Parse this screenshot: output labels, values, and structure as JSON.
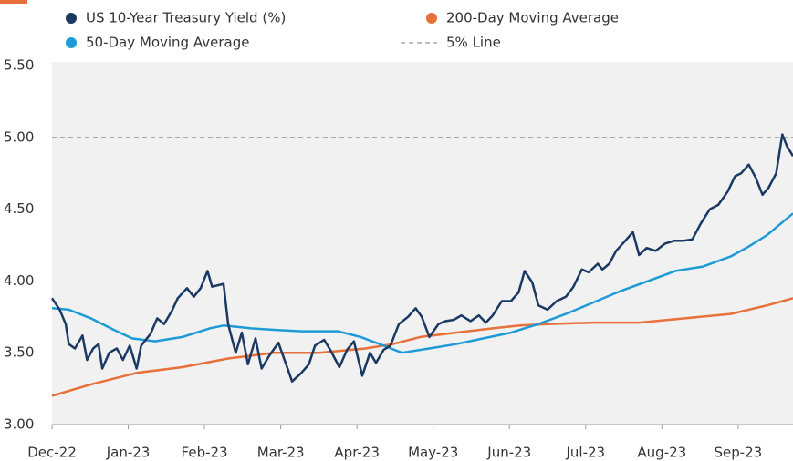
{
  "chart_data": {
    "type": "line",
    "xlim": [
      0,
      9.72
    ],
    "xticks": [
      {
        "value": 0,
        "label": "Dec-22"
      },
      {
        "value": 1,
        "label": "Jan-23"
      },
      {
        "value": 2,
        "label": "Feb-23"
      },
      {
        "value": 3,
        "label": "Mar-23"
      },
      {
        "value": 4,
        "label": "Apr-23"
      },
      {
        "value": 5,
        "label": "May-23"
      },
      {
        "value": 6,
        "label": "Jun-23"
      },
      {
        "value": 7,
        "label": "Jul-23"
      },
      {
        "value": 8,
        "label": "Aug-23"
      },
      {
        "value": 9,
        "label": "Sep-23"
      }
    ],
    "ylim": [
      3,
      5.5
    ],
    "yticks": [
      {
        "value": 3,
        "label": "3.00"
      },
      {
        "value": 3.5,
        "label": "3.50"
      },
      {
        "value": 4,
        "label": "4.00"
      },
      {
        "value": 4.5,
        "label": "4.50"
      },
      {
        "value": 5,
        "label": "5.00"
      },
      {
        "value": 5.5,
        "label": "5.50"
      }
    ],
    "grid": false,
    "reference_lines": [
      {
        "name": "5% Line",
        "value": 5,
        "color": "#aaaaaa"
      }
    ],
    "series": [
      {
        "name": "US 10-Year Treasury Yield (%)",
        "color": "#1b3a63",
        "x": [
          0,
          0.1,
          0.18,
          0.22,
          0.3,
          0.4,
          0.46,
          0.54,
          0.61,
          0.66,
          0.75,
          0.85,
          0.93,
          1.02,
          1.11,
          1.17,
          1.29,
          1.38,
          1.47,
          1.57,
          1.65,
          1.77,
          1.86,
          1.95,
          2.04,
          2.1,
          2.25,
          2.31,
          2.41,
          2.49,
          2.57,
          2.67,
          2.75,
          2.85,
          2.97,
          3.07,
          3.15,
          3.27,
          3.37,
          3.45,
          3.57,
          3.65,
          3.77,
          3.87,
          3.96,
          4.07,
          4.17,
          4.25,
          4.35,
          4.44,
          4.55,
          4.67,
          4.77,
          4.85,
          4.95,
          5.07,
          5.16,
          5.27,
          5.37,
          5.49,
          5.6,
          5.69,
          5.78,
          5.9,
          6.02,
          6.12,
          6.2,
          6.3,
          6.38,
          6.5,
          6.62,
          6.74,
          6.84,
          6.95,
          7.04,
          7.16,
          7.22,
          7.31,
          7.4,
          7.52,
          7.62,
          7.7,
          7.8,
          7.92,
          8.04,
          8.16,
          8.28,
          8.4,
          8.51,
          8.63,
          8.74,
          8.86,
          8.96,
          9.04,
          9.14,
          9.23,
          9.32,
          9.4,
          9.5,
          9.58,
          9.64,
          9.72
        ],
        "values": [
          3.88,
          3.8,
          3.7,
          3.56,
          3.53,
          3.62,
          3.45,
          3.53,
          3.56,
          3.39,
          3.5,
          3.53,
          3.45,
          3.55,
          3.39,
          3.55,
          3.63,
          3.74,
          3.7,
          3.79,
          3.88,
          3.95,
          3.89,
          3.95,
          4.07,
          3.96,
          3.98,
          3.7,
          3.5,
          3.64,
          3.42,
          3.6,
          3.39,
          3.48,
          3.57,
          3.42,
          3.3,
          3.36,
          3.42,
          3.55,
          3.59,
          3.52,
          3.4,
          3.52,
          3.58,
          3.34,
          3.5,
          3.43,
          3.52,
          3.55,
          3.7,
          3.75,
          3.81,
          3.75,
          3.61,
          3.7,
          3.72,
          3.73,
          3.76,
          3.72,
          3.76,
          3.71,
          3.76,
          3.86,
          3.86,
          3.92,
          4.07,
          3.99,
          3.83,
          3.8,
          3.86,
          3.89,
          3.96,
          4.08,
          4.06,
          4.12,
          4.08,
          4.12,
          4.21,
          4.28,
          4.34,
          4.18,
          4.23,
          4.21,
          4.26,
          4.28,
          4.28,
          4.29,
          4.4,
          4.5,
          4.53,
          4.62,
          4.73,
          4.75,
          4.81,
          4.72,
          4.6,
          4.65,
          4.75,
          5.02,
          4.94,
          4.87
        ]
      },
      {
        "name": "200-Day Moving Average",
        "color": "#e8703a",
        "x": [
          0,
          0.51,
          1.11,
          1.71,
          2.31,
          2.91,
          3.51,
          4.11,
          4.47,
          4.83,
          5.3,
          5.78,
          6.14,
          6.5,
          7.1,
          7.7,
          8.3,
          8.9,
          9.38,
          9.72
        ],
        "values": [
          3.2,
          3.28,
          3.36,
          3.4,
          3.46,
          3.5,
          3.5,
          3.53,
          3.56,
          3.61,
          3.64,
          3.67,
          3.69,
          3.7,
          3.71,
          3.71,
          3.74,
          3.77,
          3.83,
          3.88
        ]
      },
      {
        "name": "50-Day Moving Average",
        "color": "#1e9bd7",
        "x": [
          0,
          0.22,
          0.51,
          0.81,
          1.05,
          1.35,
          1.71,
          2.07,
          2.25,
          2.43,
          2.61,
          2.91,
          3.27,
          3.75,
          4.05,
          4.35,
          4.59,
          4.95,
          5.3,
          5.66,
          6.02,
          6.38,
          6.74,
          7.1,
          7.46,
          7.82,
          8.18,
          8.54,
          8.9,
          9.14,
          9.38,
          9.72
        ],
        "values": [
          3.81,
          3.8,
          3.74,
          3.66,
          3.6,
          3.58,
          3.61,
          3.67,
          3.69,
          3.68,
          3.67,
          3.66,
          3.65,
          3.65,
          3.61,
          3.55,
          3.5,
          3.53,
          3.56,
          3.6,
          3.64,
          3.7,
          3.77,
          3.85,
          3.93,
          4.0,
          4.07,
          4.1,
          4.17,
          4.24,
          4.32,
          4.47
        ]
      }
    ]
  }
}
